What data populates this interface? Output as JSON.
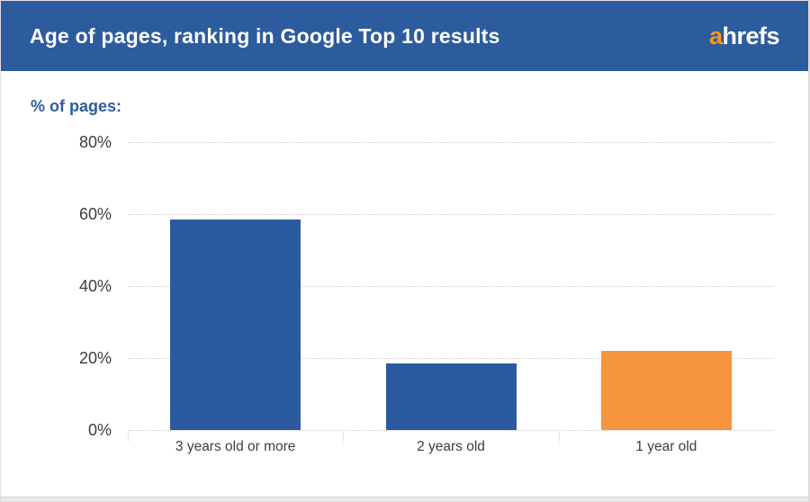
{
  "header": {
    "title": "Age of pages, ranking in Google Top 10 results"
  },
  "brand": {
    "logo_prefix": "a",
    "logo_suffix": "hrefs"
  },
  "chart_data": {
    "type": "bar",
    "title": "Age of pages, ranking in Google Top 10 results",
    "ylabel": "% of pages:",
    "categories": [
      "3 years old or more",
      "2 years old",
      "1 year old"
    ],
    "values": [
      58.5,
      18.5,
      22
    ],
    "bar_colors": [
      "#2b5b9e",
      "#2b5b9e",
      "#f7943e"
    ],
    "ytick_labels": [
      "0%",
      "20%",
      "40%",
      "60%",
      "80%"
    ],
    "ytick_values": [
      0,
      20,
      40,
      60,
      80
    ],
    "ylim": [
      0,
      80
    ],
    "grid": "horizontal-dotted",
    "legend": "none"
  },
  "colors": {
    "header_bg": "#2d5c9e",
    "bar_blue": "#2b5b9e",
    "bar_orange": "#f7943e",
    "logo_orange": "#f7941e",
    "axis_text": "#3e3e3e",
    "gridline": "#cfcfcf",
    "ylabel_text": "#2d5c9e"
  }
}
